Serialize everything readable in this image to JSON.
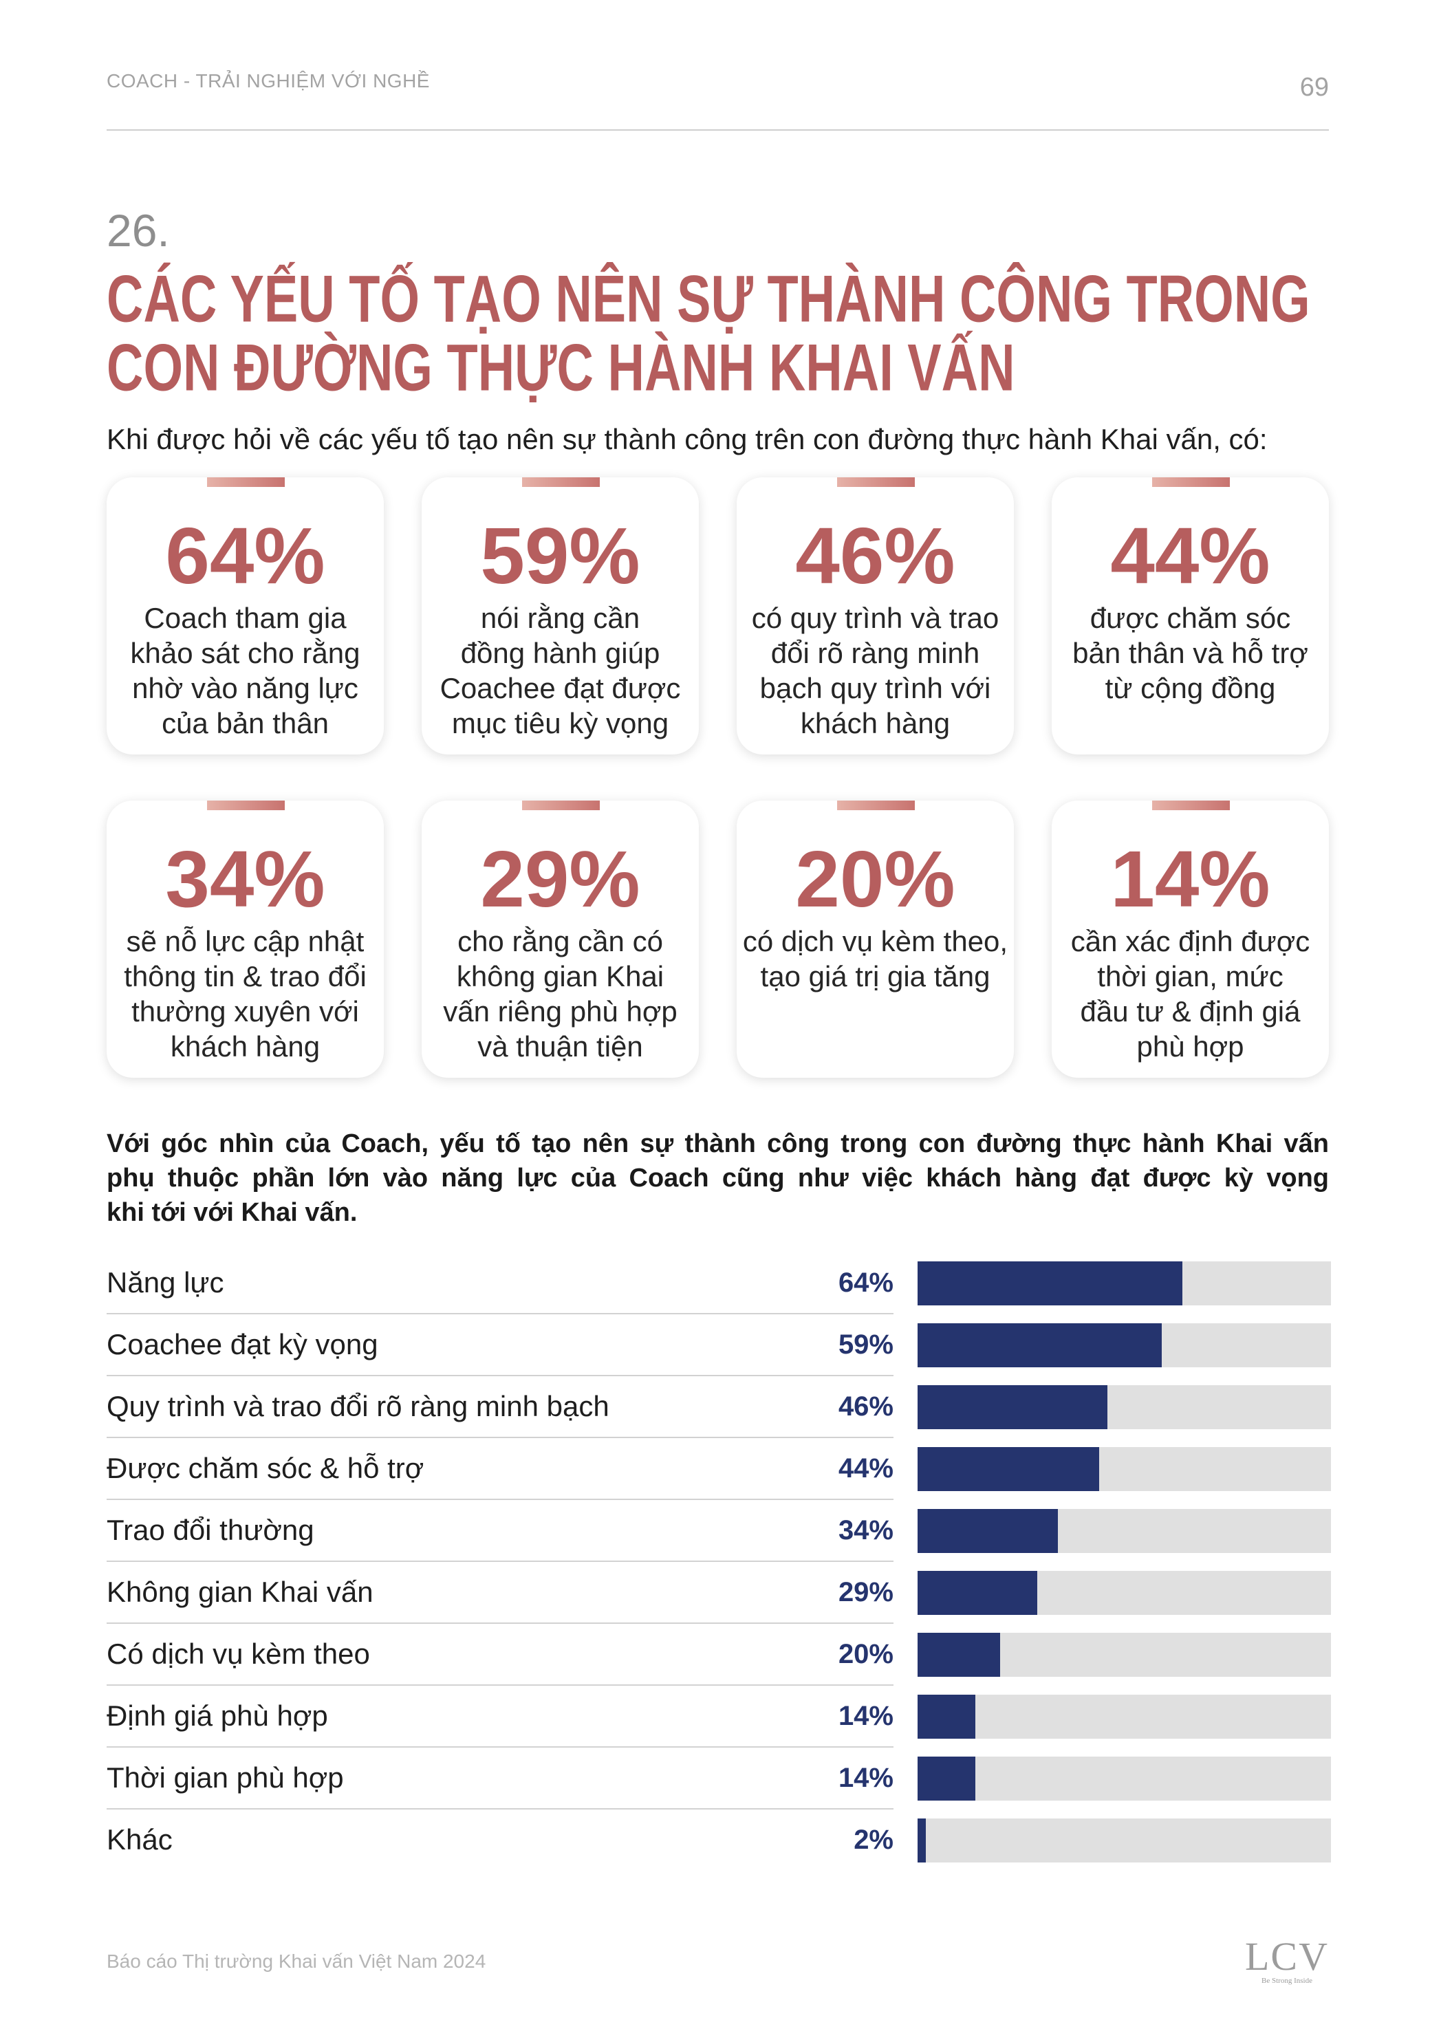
{
  "header": {
    "section": "COACH - TRẢI NGHIỆM VỚI NGHỀ",
    "page_number": "69"
  },
  "heading": {
    "number": "26.",
    "title_line1": "CÁC YẾU TỐ TẠO NÊN SỰ THÀNH CÔNG TRONG",
    "title_line2": "CON ĐƯỜNG THỰC HÀNH KHAI VẤN"
  },
  "intro": "Khi được hỏi về các yếu tố tạo nên sự thành công trên con đường thực hành Khai vấn, có:",
  "stats": [
    {
      "percent": "64%",
      "lines": [
        "Coach tham gia",
        "khảo sát cho rằng",
        "nhờ vào năng lực",
        "của bản thân"
      ]
    },
    {
      "percent": "59%",
      "lines": [
        "nói rằng cần",
        "đồng hành giúp",
        "Coachee đạt được",
        "mục tiêu kỳ vọng"
      ]
    },
    {
      "percent": "46%",
      "lines": [
        "có quy trình và trao",
        "đổi rõ ràng minh",
        "bạch quy trình với",
        "khách hàng"
      ]
    },
    {
      "percent": "44%",
      "lines": [
        "được chăm sóc",
        "bản thân và hỗ trợ",
        "từ cộng đồng"
      ]
    },
    {
      "percent": "34%",
      "lines": [
        "sẽ nỗ lực cập nhật",
        "thông tin & trao đổi",
        "thường xuyên với",
        "khách hàng"
      ]
    },
    {
      "percent": "29%",
      "lines": [
        "cho rằng cần có",
        "không gian Khai",
        "vấn riêng phù hợp",
        "và thuận tiện"
      ]
    },
    {
      "percent": "20%",
      "lines": [
        "có dịch vụ kèm theo,",
        "tạo giá trị gia tăng"
      ]
    },
    {
      "percent": "14%",
      "lines": [
        "cần xác định được",
        "thời gian, mức",
        "đầu tư & định giá",
        "phù hợp"
      ]
    }
  ],
  "summary": {
    "lines": [
      "Với góc nhìn của Coach, yếu tố tạo nên sự thành công trong con đường thực hành Khai vấn",
      "phụ thuộc phần lớn vào năng lực của Coach cũng như việc khách hàng đạt được kỳ vọng",
      "khi tới với Khai vấn."
    ]
  },
  "chart_data": {
    "type": "bar",
    "orientation": "horizontal",
    "categories": [
      "Năng lực",
      "Coachee đạt kỳ vọng",
      "Quy trình và trao đổi rõ ràng minh bạch",
      "Được chăm sóc & hỗ trợ",
      "Trao đổi thường",
      "Không gian Khai vấn",
      "Có dịch vụ kèm theo",
      "Định giá phù hợp",
      "Thời gian phù hợp",
      "Khác"
    ],
    "values": [
      64,
      59,
      46,
      44,
      34,
      29,
      20,
      14,
      14,
      2
    ],
    "value_labels": [
      "64%",
      "59%",
      "46%",
      "44%",
      "34%",
      "29%",
      "20%",
      "14%",
      "14%",
      "2%"
    ],
    "xlim": [
      0,
      100
    ],
    "grid": false,
    "legend": "none",
    "colors": {
      "bar": "#25346e",
      "track": "#e0e0e0"
    }
  },
  "colors": {
    "accent": "#b55d5d",
    "navy": "#25346e"
  },
  "footer": {
    "text": "Báo cáo Thị trường Khai vấn Việt Nam 2024",
    "logo_text": "LCV",
    "logo_tagline": "Be Strong Inside"
  }
}
